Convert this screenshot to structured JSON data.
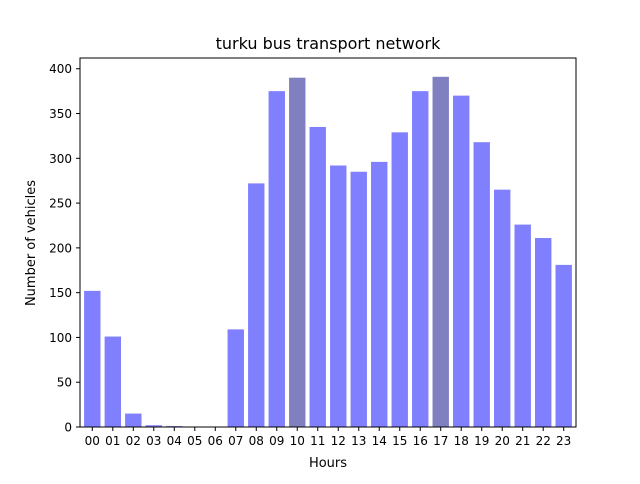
{
  "chart_data": {
    "type": "bar",
    "title": "turku bus transport network",
    "xlabel": "Hours",
    "ylabel": "Number of vehicles",
    "categories": [
      "00",
      "01",
      "02",
      "03",
      "04",
      "05",
      "06",
      "07",
      "08",
      "09",
      "10",
      "11",
      "12",
      "13",
      "14",
      "15",
      "16",
      "17",
      "18",
      "19",
      "20",
      "21",
      "22",
      "23"
    ],
    "values": [
      152,
      101,
      15,
      2,
      1,
      0,
      0,
      109,
      272,
      375,
      390,
      335,
      292,
      285,
      296,
      329,
      375,
      391,
      370,
      318,
      265,
      226,
      211,
      181
    ],
    "highlight_categories": [
      "10",
      "17"
    ],
    "ylim": [
      0,
      412
    ],
    "yticks": [
      0,
      50,
      100,
      150,
      200,
      250,
      300,
      350,
      400
    ],
    "grid": false,
    "legend": "none",
    "colors": {
      "bar": "#8080ff",
      "highlight_bar": "#8080c0",
      "axis": "#000000",
      "background": "#ffffff"
    }
  }
}
